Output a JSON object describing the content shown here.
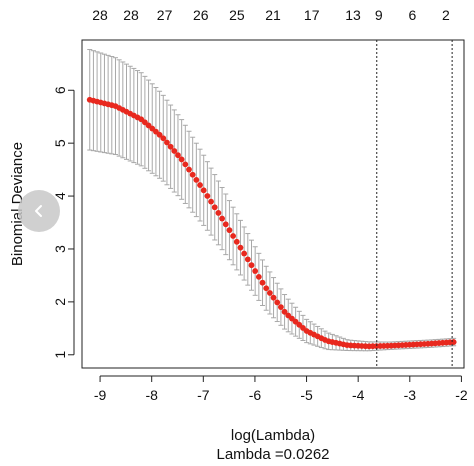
{
  "chart_data": {
    "type": "scatter",
    "xlabel": "log(Lambda)",
    "ylabel": "Binomial Deviance",
    "subtitle": "Lambda =0.0262",
    "xlim": [
      -9.35,
      -1.95
    ],
    "ylim": [
      0.75,
      6.95
    ],
    "x_ticks": [
      -9,
      -8,
      -7,
      -6,
      -5,
      -4,
      -3,
      -2
    ],
    "y_ticks": [
      1,
      2,
      3,
      4,
      5,
      6
    ],
    "top_axis": {
      "x": [
        -9.0,
        -8.4,
        -7.8,
        -7.2,
        -6.6,
        -6.0,
        -5.4,
        -4.8,
        -4.25,
        -3.8,
        -3.4,
        -2.9
      ],
      "labels": [
        "28",
        "28",
        "27",
        "26",
        "25",
        "21",
        "17",
        "13",
        "9",
        "6",
        "2",
        ""
      ]
    },
    "top_axis_labels": [
      "28",
      "28",
      "27",
      "26",
      "25",
      "21",
      "17",
      "13",
      "9",
      "6",
      "2"
    ],
    "top_axis_positions": [
      -9.0,
      -8.4,
      -7.75,
      -7.05,
      -6.35,
      -5.65,
      -4.9,
      -4.1,
      -3.6,
      -2.95,
      -2.3
    ],
    "vlines": [
      -3.64,
      -2.18
    ],
    "point_color": "#e8281e",
    "errorbar_color": "#a8a8a8",
    "series": [
      {
        "x_start": -9.2,
        "x_end": -2.15,
        "n_points": 100,
        "mean_knots": [
          [
            -9.2,
            5.82
          ],
          [
            -8.7,
            5.7
          ],
          [
            -8.2,
            5.45
          ],
          [
            -7.8,
            5.12
          ],
          [
            -7.4,
            4.67
          ],
          [
            -7.0,
            4.12
          ],
          [
            -6.6,
            3.52
          ],
          [
            -6.2,
            2.9
          ],
          [
            -5.8,
            2.28
          ],
          [
            -5.4,
            1.78
          ],
          [
            -5.0,
            1.45
          ],
          [
            -4.6,
            1.26
          ],
          [
            -4.2,
            1.18
          ],
          [
            -3.8,
            1.16
          ],
          [
            -3.4,
            1.17
          ],
          [
            -3.0,
            1.19
          ],
          [
            -2.6,
            1.21
          ],
          [
            -2.15,
            1.24
          ]
        ],
        "err_knots": [
          [
            -9.2,
            0.95
          ],
          [
            -8.2,
            0.88
          ],
          [
            -7.4,
            0.75
          ],
          [
            -6.6,
            0.58
          ],
          [
            -5.8,
            0.42
          ],
          [
            -5.0,
            0.22
          ],
          [
            -4.2,
            0.1
          ],
          [
            -3.4,
            0.07
          ],
          [
            -2.15,
            0.07
          ]
        ]
      }
    ]
  },
  "overlay": {
    "nav_icon": "chevron-left-icon"
  }
}
